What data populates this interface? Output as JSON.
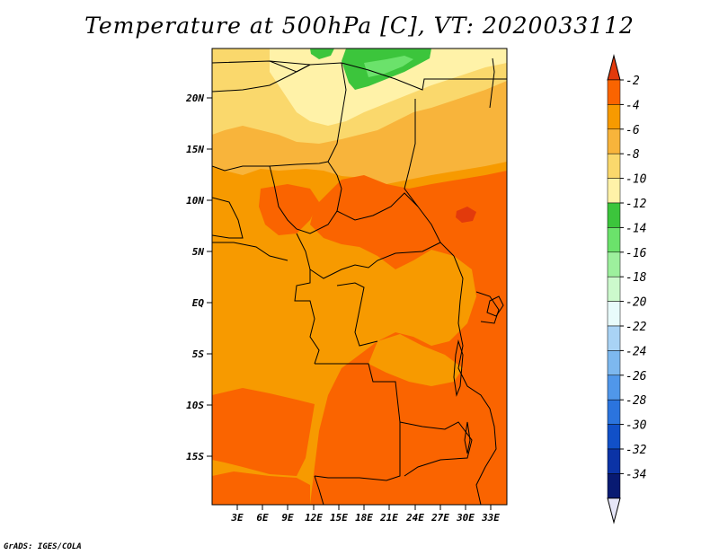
{
  "title": "Temperature at 500hPa [C], VT: 2020033112",
  "credit": "GrADS: IGES/COLA",
  "map": {
    "lat_labels": [
      "20N",
      "15N",
      "10N",
      "5N",
      "EQ",
      "5S",
      "10S",
      "15S"
    ],
    "lon_labels": [
      "3E",
      "6E",
      "9E",
      "12E",
      "15E",
      "18E",
      "21E",
      "24E",
      "27E",
      "30E",
      "33E"
    ]
  },
  "colorbar": {
    "labels": [
      "-2",
      "-4",
      "-6",
      "-8",
      "-10",
      "-12",
      "-14",
      "-16",
      "-18",
      "-20",
      "-22",
      "-24",
      "-26",
      "-28",
      "-30",
      "-32",
      "-34"
    ],
    "colors": [
      "#e23a0c",
      "#fa6400",
      "#f79a00",
      "#f8b43b",
      "#fad86c",
      "#fff2a8",
      "#3cc53c",
      "#6be26b",
      "#9df09d",
      "#ccf9cc",
      "#e8fbfb",
      "#a9d3f5",
      "#7db8ef",
      "#5097ea",
      "#2b74de",
      "#1150c8",
      "#0b33a6",
      "#081a72",
      "#e6e6f8"
    ]
  }
}
